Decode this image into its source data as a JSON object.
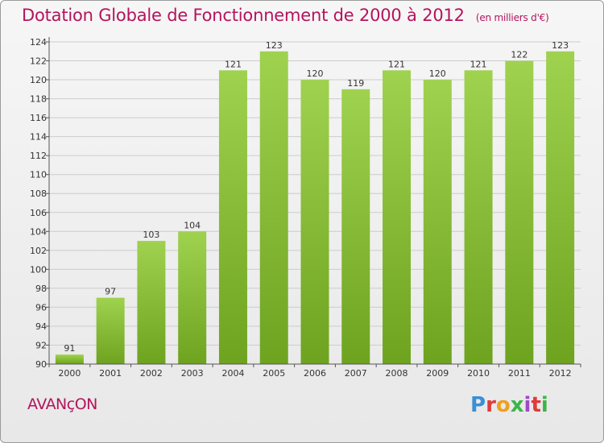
{
  "header": {
    "title": "Dotation Globale de Fonctionnement de 2000 à 2012",
    "unit": "(en milliers d'€)"
  },
  "footer": {
    "commune": "AVANçON",
    "brand": "Proxiti",
    "brand_colors": [
      "#3b8fd6",
      "#e03a3a",
      "#f0a020",
      "#3bb54a",
      "#a04ac8",
      "#e03a3a",
      "#3bb54a"
    ]
  },
  "colors": {
    "bar_light": "#9fd24f",
    "bar_dark": "#6ea31f",
    "title": "#b5145c",
    "grid": "#cccccc"
  },
  "chart_data": {
    "type": "bar",
    "categories": [
      "2000",
      "2001",
      "2002",
      "2003",
      "2004",
      "2005",
      "2006",
      "2007",
      "2008",
      "2009",
      "2010",
      "2011",
      "2012"
    ],
    "values": [
      91,
      97,
      103,
      104,
      121,
      123,
      120,
      119,
      121,
      120,
      121,
      122,
      123
    ],
    "ylim": [
      90,
      124
    ],
    "yticks": [
      90,
      92,
      94,
      96,
      98,
      100,
      102,
      104,
      106,
      108,
      110,
      112,
      114,
      116,
      118,
      120,
      122,
      124
    ],
    "grid": true
  }
}
